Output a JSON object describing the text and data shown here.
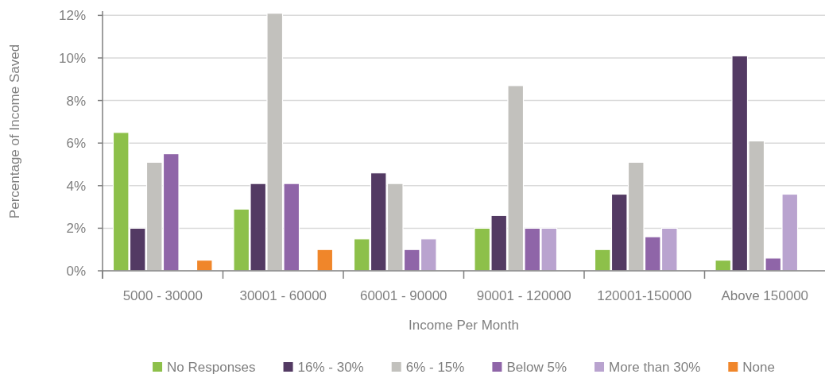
{
  "chart_data": {
    "type": "bar",
    "xlabel": "Income Per Month",
    "ylabel": "Percentage of Income Saved",
    "categories": [
      "5000 - 30000",
      "30001 - 60000",
      "60001 - 90000",
      "90001 - 120000",
      "120001-150000",
      "Above 150000"
    ],
    "series": [
      {
        "name": "No Responses",
        "color": "#8dc04a",
        "values": [
          6.5,
          2.9,
          1.5,
          2.0,
          1.0,
          0.5
        ]
      },
      {
        "name": "16% - 30%",
        "color": "#533a63",
        "values": [
          2.0,
          4.1,
          4.6,
          2.6,
          3.6,
          10.1
        ]
      },
      {
        "name": "6% - 15%",
        "color": "#c2c1bd",
        "values": [
          5.1,
          12.1,
          4.1,
          8.7,
          5.1,
          6.1
        ]
      },
      {
        "name": "Below 5%",
        "color": "#8f65a8",
        "values": [
          5.5,
          4.1,
          1.0,
          2.0,
          1.6,
          0.6
        ]
      },
      {
        "name": "More than 30%",
        "color": "#b9a3cf",
        "values": [
          null,
          null,
          1.5,
          2.0,
          2.0,
          3.6
        ]
      },
      {
        "name": "None",
        "color": "#f0862a",
        "values": [
          0.5,
          1.0,
          null,
          null,
          null,
          null
        ]
      }
    ],
    "ylim": [
      0,
      12.2
    ],
    "yticks": [
      {
        "value": 0,
        "label": "0%"
      },
      {
        "value": 2,
        "label": "2%"
      },
      {
        "value": 4,
        "label": "4%"
      },
      {
        "value": 6,
        "label": "6%"
      },
      {
        "value": 8,
        "label": "8%"
      },
      {
        "value": 10,
        "label": "10%"
      },
      {
        "value": 12,
        "label": "12%"
      }
    ],
    "grid": "y",
    "legend": "bottom"
  }
}
